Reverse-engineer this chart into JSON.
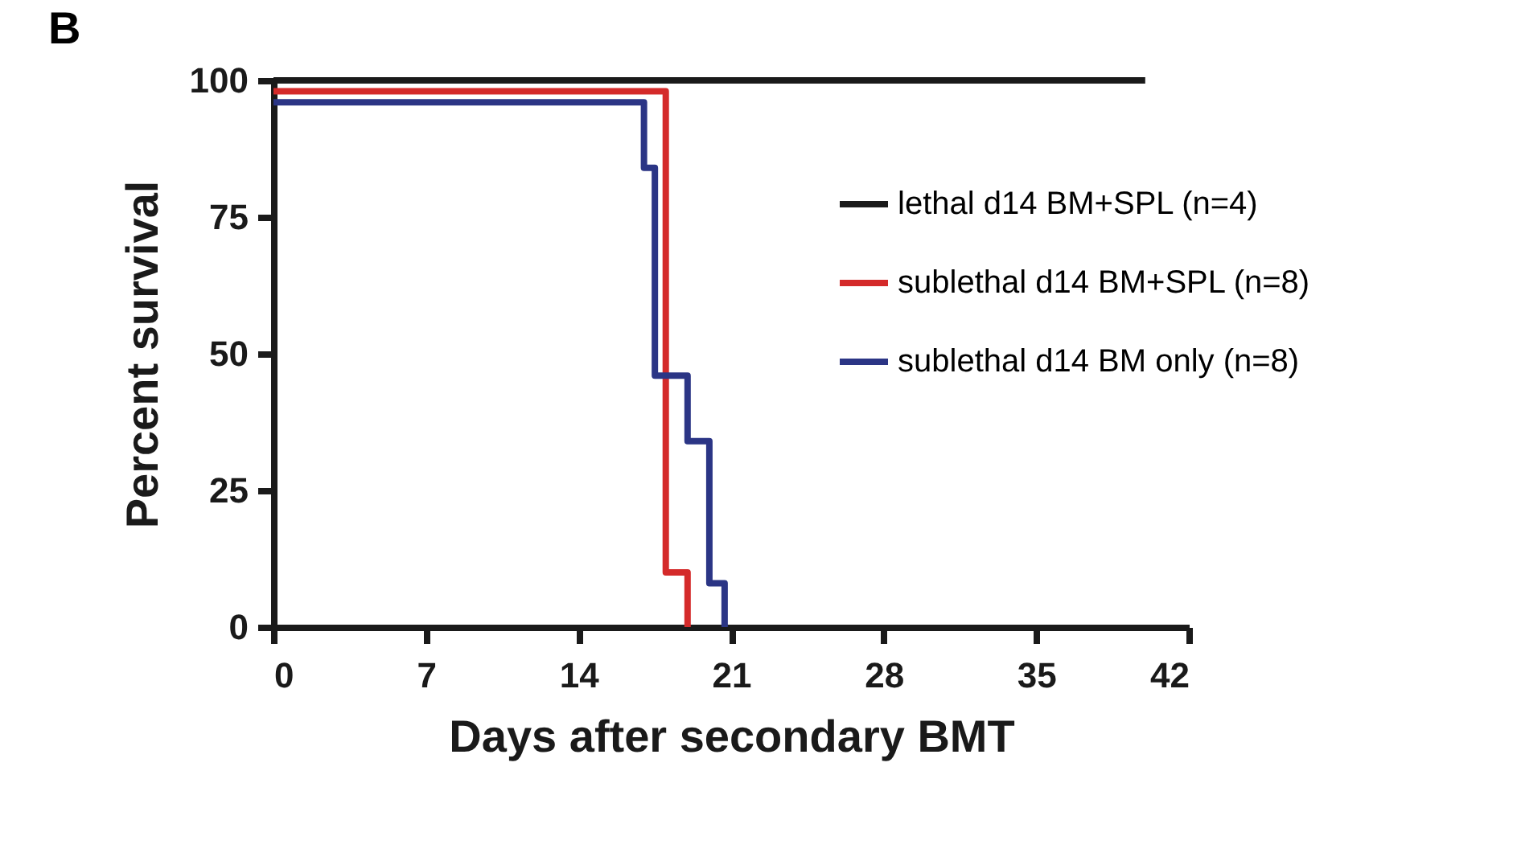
{
  "chart_data": {
    "type": "step",
    "title": "B",
    "xlabel": "Days after secondary BMT",
    "ylabel": "Percent survival",
    "xlim": [
      0,
      42
    ],
    "xticks": [
      0,
      7,
      14,
      21,
      28,
      35,
      42
    ],
    "ylim": [
      0,
      100
    ],
    "yticks": [
      0,
      25,
      50,
      75,
      100
    ],
    "grid": false,
    "legend": "right",
    "line_style": "solid",
    "marker": "none",
    "series": [
      {
        "name": "lethal d14 BM+SPL (n=4)",
        "color": "#1a1a1a",
        "x": [
          0,
          40
        ],
        "values": [
          100,
          100
        ]
      },
      {
        "name": "sublethal d14 BM+SPL (n=8)",
        "color": "#d42a2a",
        "x": [
          0,
          18,
          19
        ],
        "values": [
          98,
          10,
          0
        ]
      },
      {
        "name": "sublethal d14 BM only (n=8)",
        "color": "#2b3585",
        "x": [
          0,
          17,
          17.5,
          19,
          20,
          20.7
        ],
        "values": [
          96,
          84,
          46,
          34,
          8,
          0
        ]
      }
    ]
  }
}
